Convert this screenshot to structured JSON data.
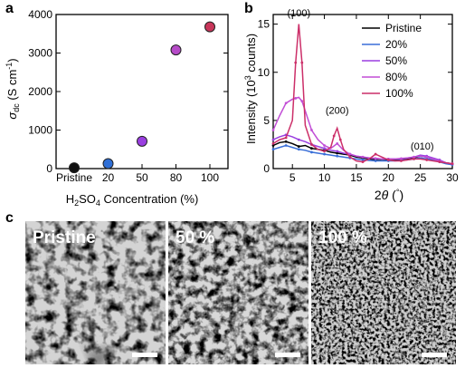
{
  "panel_labels": {
    "a": "a",
    "b": "b",
    "c": "c"
  },
  "chart_data": [
    {
      "type": "scatter",
      "panel": "a",
      "xlabel_parts": {
        "H": "H",
        "sub2": "2",
        "SO": "SO",
        "sub4": "4",
        "rest": " Concentration (%)"
      },
      "ylabel_parts": {
        "sigma": "σ",
        "sub": "dc",
        "rest": " (S cm",
        "sup": "-1",
        "close": ")"
      },
      "categories": [
        "Pristine",
        "20",
        "50",
        "80",
        "100"
      ],
      "values": [
        20,
        130,
        710,
        3080,
        3680
      ],
      "errors": [
        10,
        30,
        60,
        70,
        70
      ],
      "point_colors": [
        "#111111",
        "#2f6fd6",
        "#9a3fe0",
        "#b64bc8",
        "#c8365a"
      ],
      "ylim": [
        0,
        4000
      ],
      "yticks": [
        "0",
        "1000",
        "2000",
        "3000",
        "4000"
      ]
    },
    {
      "type": "line",
      "panel": "b",
      "xlabel_parts": {
        "n": "2",
        "theta": "θ",
        "open": " (",
        "deg": "°",
        "close": ")"
      },
      "ylabel_parts": {
        "main": "Intensity (10",
        "sup": "3",
        "rest": " counts)"
      },
      "xlim": [
        2,
        30
      ],
      "ylim": [
        0,
        16
      ],
      "xticks": [
        "5",
        "10",
        "15",
        "20",
        "25",
        "30"
      ],
      "yticks": [
        "0",
        "5",
        "10",
        "15"
      ],
      "annotations": [
        {
          "text": "(100)",
          "x": 6.0,
          "y": 15.8
        },
        {
          "text": "(200)",
          "x": 12.0,
          "y": 5.7
        },
        {
          "text": "(010)",
          "x": 25.3,
          "y": 2.0
        }
      ],
      "legend": "top-right",
      "series": [
        {
          "name": "Pristine",
          "color": "#000000",
          "x": [
            2,
            3,
            4,
            5,
            6,
            7,
            8,
            9,
            10,
            11,
            12,
            13,
            14,
            15,
            16,
            17,
            18,
            19,
            20,
            21,
            22,
            23,
            24,
            25,
            26,
            27,
            28,
            29,
            30
          ],
          "y": [
            2.4,
            2.7,
            2.8,
            2.6,
            2.3,
            2.4,
            2.1,
            2.0,
            1.9,
            1.7,
            1.6,
            1.5,
            1.4,
            1.2,
            1.1,
            1.0,
            0.95,
            0.95,
            0.9,
            0.9,
            0.9,
            1.0,
            1.1,
            1.3,
            1.2,
            1.0,
            0.8,
            0.6,
            0.5
          ]
        },
        {
          "name": "20%",
          "color": "#3a6fd8",
          "x": [
            2,
            3,
            4,
            5,
            6,
            7,
            8,
            9,
            10,
            11,
            12,
            13,
            14,
            15,
            16,
            17,
            18,
            19,
            20,
            21,
            22,
            23,
            24,
            25,
            26,
            27,
            28,
            29,
            30
          ],
          "y": [
            2.0,
            2.2,
            2.4,
            2.2,
            2.0,
            1.9,
            1.7,
            1.6,
            1.5,
            1.4,
            1.3,
            1.2,
            1.1,
            1.0,
            0.9,
            0.85,
            0.8,
            0.8,
            0.8,
            0.8,
            0.85,
            0.9,
            1.0,
            1.1,
            1.0,
            0.9,
            0.7,
            0.5,
            0.4
          ]
        },
        {
          "name": "50%",
          "color": "#9b3fe0",
          "x": [
            2,
            3,
            4,
            5,
            6,
            7,
            8,
            9,
            10,
            11,
            12,
            13,
            14,
            15,
            16,
            17,
            18,
            19,
            20,
            21,
            22,
            23,
            24,
            25,
            26,
            27,
            28,
            29,
            30
          ],
          "y": [
            3.0,
            3.3,
            3.5,
            3.3,
            3.0,
            2.8,
            2.5,
            2.3,
            2.1,
            1.9,
            1.8,
            1.6,
            1.5,
            1.3,
            1.2,
            1.1,
            1.05,
            1.0,
            1.0,
            1.0,
            1.0,
            1.1,
            1.2,
            1.4,
            1.3,
            1.1,
            0.9,
            0.6,
            0.5
          ]
        },
        {
          "name": "80%",
          "color": "#c24fd6",
          "x": [
            2,
            3,
            4,
            5,
            5.5,
            6,
            6.5,
            7,
            8,
            9,
            10,
            11,
            12,
            13,
            14,
            15,
            16,
            17,
            18,
            19,
            20,
            21,
            22,
            23,
            24,
            25,
            26,
            27,
            28,
            29,
            30
          ],
          "y": [
            4.0,
            5.5,
            6.8,
            7.2,
            7.3,
            7.4,
            7.0,
            6.0,
            4.0,
            3.0,
            2.4,
            2.1,
            2.6,
            1.9,
            1.5,
            1.3,
            1.2,
            1.1,
            1.05,
            1.0,
            1.0,
            1.0,
            1.05,
            1.1,
            1.2,
            1.3,
            1.2,
            1.0,
            0.8,
            0.6,
            0.5
          ]
        },
        {
          "name": "100%",
          "color": "#cc2f69",
          "x": [
            2,
            3,
            4,
            5,
            5.5,
            6,
            6.5,
            7,
            8,
            9,
            10,
            11,
            11.5,
            12,
            12.5,
            13,
            14,
            15,
            16,
            17,
            18,
            19,
            20,
            21,
            22,
            23,
            24,
            25,
            26,
            27,
            28,
            29,
            30
          ],
          "y": [
            2.6,
            3.0,
            3.2,
            5.0,
            11.0,
            15.0,
            11.0,
            4.5,
            2.5,
            2.0,
            1.8,
            2.2,
            3.4,
            4.2,
            3.0,
            2.0,
            1.2,
            0.8,
            0.7,
            1.0,
            1.5,
            1.2,
            0.9,
            0.8,
            0.8,
            0.9,
            1.0,
            1.0,
            0.9,
            0.8,
            0.7,
            0.6,
            0.5
          ]
        }
      ]
    }
  ],
  "micrographs": [
    {
      "label": "Pristine",
      "texture": "coarse"
    },
    {
      "label": "50 %",
      "texture": "medium"
    },
    {
      "label": "100 %",
      "texture": "fine"
    }
  ]
}
